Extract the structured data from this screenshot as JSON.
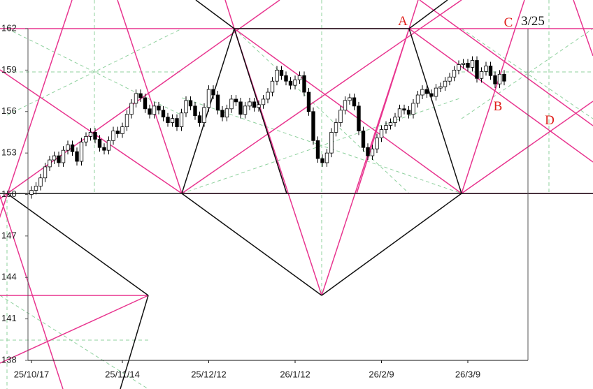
{
  "chart_data": {
    "type": "candlestick",
    "categories": [
      "25/10/17",
      null,
      null,
      null,
      null,
      null,
      null,
      null,
      null,
      null,
      null,
      null,
      null,
      null,
      null,
      null,
      null,
      null,
      null,
      null,
      "25/11/14",
      null,
      null,
      null,
      null,
      null,
      null,
      null,
      null,
      null,
      null,
      null,
      null,
      null,
      null,
      null,
      null,
      null,
      null,
      "25/12/12",
      null,
      null,
      null,
      null,
      null,
      null,
      null,
      null,
      null,
      null,
      null,
      null,
      null,
      null,
      null,
      null,
      null,
      null,
      "26/1/12",
      null,
      null,
      null,
      null,
      null,
      null,
      null,
      null,
      null,
      null,
      null,
      null,
      null,
      null,
      null,
      null,
      null,
      null,
      "26/2/9",
      null,
      null,
      null,
      null,
      null,
      null,
      null,
      null,
      null,
      null,
      null,
      null,
      null,
      null,
      null,
      null,
      null,
      null,
      "26/3/9",
      null,
      null,
      null,
      null,
      null,
      null,
      null,
      null
    ],
    "open": [
      150.0,
      150.3,
      150.6,
      151.2,
      152.0,
      152.5,
      152.8,
      152.3,
      153.2,
      153.6,
      153.1,
      152.4,
      153.8,
      154.2,
      154.5,
      154.0,
      153.4,
      153.2,
      153.9,
      154.6,
      154.4,
      154.9,
      155.8,
      156.6,
      157.3,
      157.0,
      156.2,
      155.8,
      156.4,
      156.1,
      155.6,
      155.2,
      155.5,
      154.9,
      155.9,
      156.8,
      156.4,
      155.7,
      155.2,
      156.3,
      157.6,
      157.2,
      156.1,
      155.6,
      156.2,
      156.9,
      156.7,
      155.8,
      156.4,
      156.7,
      156.3,
      156.5,
      156.9,
      157.4,
      158.2,
      159.0,
      158.6,
      158.2,
      157.9,
      158.3,
      158.6,
      157.4,
      156.0,
      153.9,
      152.6,
      152.3,
      153.0,
      154.5,
      155.2,
      156.1,
      156.8,
      157.0,
      156.4,
      154.6,
      153.4,
      152.8,
      153.3,
      154.1,
      154.7,
      155.0,
      155.2,
      155.6,
      156.2,
      156.1,
      155.8,
      156.6,
      157.2,
      157.6,
      157.3,
      157.1,
      157.7,
      157.8,
      158.2,
      158.5,
      159.0,
      159.4,
      159.5,
      159.2,
      159.7,
      158.4,
      158.9,
      159.3,
      158.6,
      158.0,
      158.7
    ],
    "high": [
      150.6,
      150.9,
      151.5,
      152.3,
      152.8,
      153.1,
      153.1,
      153.5,
      153.9,
      153.9,
      153.4,
      154.1,
      154.5,
      154.8,
      154.8,
      154.3,
      153.7,
      154.2,
      154.9,
      154.9,
      155.2,
      156.1,
      156.9,
      157.6,
      157.6,
      157.3,
      156.5,
      156.7,
      156.7,
      156.4,
      155.9,
      155.8,
      155.8,
      156.2,
      157.1,
      157.1,
      156.7,
      156.0,
      156.6,
      157.9,
      157.9,
      157.5,
      156.4,
      156.5,
      157.2,
      157.2,
      157.0,
      156.7,
      157.0,
      157.0,
      156.8,
      157.2,
      157.7,
      158.5,
      159.3,
      159.3,
      158.9,
      158.5,
      158.6,
      158.9,
      158.9,
      157.7,
      156.3,
      154.2,
      152.9,
      153.3,
      154.8,
      155.5,
      156.4,
      157.1,
      157.3,
      157.3,
      156.7,
      154.9,
      153.7,
      153.6,
      154.4,
      155.0,
      155.3,
      155.5,
      155.9,
      156.5,
      156.5,
      156.4,
      156.9,
      157.5,
      157.9,
      157.9,
      157.6,
      158.0,
      158.1,
      158.5,
      158.8,
      159.3,
      159.7,
      159.8,
      159.8,
      160.0,
      160.0,
      159.2,
      159.6,
      159.6,
      158.9,
      159.0,
      159.0
    ],
    "low": [
      149.7,
      150.0,
      150.3,
      150.9,
      151.7,
      152.2,
      152.0,
      152.0,
      152.9,
      152.8,
      152.1,
      152.1,
      153.5,
      153.9,
      153.7,
      153.1,
      152.9,
      152.9,
      153.6,
      154.1,
      154.1,
      154.6,
      155.5,
      156.3,
      156.7,
      155.9,
      155.5,
      155.5,
      155.8,
      155.3,
      154.9,
      154.9,
      154.6,
      154.6,
      155.6,
      156.1,
      155.4,
      154.9,
      154.9,
      156.0,
      156.9,
      155.8,
      155.3,
      155.3,
      155.9,
      156.4,
      155.5,
      155.5,
      156.1,
      156.0,
      156.0,
      156.2,
      156.6,
      157.1,
      157.9,
      158.3,
      157.9,
      157.6,
      157.6,
      158.0,
      157.1,
      155.7,
      153.6,
      152.3,
      152.0,
      152.0,
      152.7,
      154.2,
      154.9,
      155.8,
      156.5,
      156.1,
      154.3,
      153.1,
      152.5,
      152.5,
      153.0,
      153.8,
      154.4,
      154.7,
      154.9,
      155.3,
      155.8,
      155.5,
      155.5,
      156.3,
      156.9,
      157.0,
      156.8,
      156.8,
      157.4,
      157.5,
      157.9,
      158.2,
      158.7,
      159.1,
      158.9,
      158.9,
      158.1,
      158.1,
      158.6,
      158.3,
      157.7,
      157.7,
      157.9
    ],
    "close": [
      150.3,
      150.6,
      151.2,
      152.0,
      152.5,
      152.8,
      152.3,
      153.2,
      153.6,
      153.1,
      152.4,
      153.8,
      154.2,
      154.5,
      154.0,
      153.4,
      153.2,
      153.9,
      154.6,
      154.4,
      154.9,
      155.8,
      156.6,
      157.3,
      157.0,
      156.2,
      155.8,
      156.4,
      156.1,
      155.6,
      155.2,
      155.5,
      154.9,
      155.9,
      156.8,
      156.4,
      155.7,
      155.2,
      156.3,
      157.6,
      157.2,
      156.1,
      155.6,
      156.2,
      156.9,
      156.7,
      155.8,
      156.4,
      156.7,
      156.3,
      156.5,
      156.9,
      157.4,
      158.2,
      159.0,
      158.6,
      158.2,
      157.9,
      158.3,
      158.6,
      157.4,
      156.0,
      153.9,
      152.6,
      152.3,
      153.0,
      154.5,
      155.2,
      156.1,
      156.8,
      157.0,
      156.4,
      154.6,
      153.4,
      152.8,
      153.3,
      154.1,
      154.7,
      155.0,
      155.2,
      155.6,
      156.2,
      156.1,
      155.8,
      156.6,
      157.2,
      157.6,
      157.3,
      157.1,
      157.7,
      157.8,
      158.2,
      158.5,
      159.0,
      159.4,
      159.5,
      159.2,
      159.7,
      158.4,
      158.9,
      159.3,
      158.6,
      158.0,
      158.7,
      158.2
    ],
    "up_color": "#ffffff",
    "down_color": "#000000",
    "ylim": [
      138,
      162
    ],
    "yticks": [
      138,
      141,
      144,
      147,
      150,
      153,
      156,
      159,
      162
    ],
    "annotations": [
      "A",
      "B",
      "C",
      "D",
      "3/25"
    ]
  }
}
